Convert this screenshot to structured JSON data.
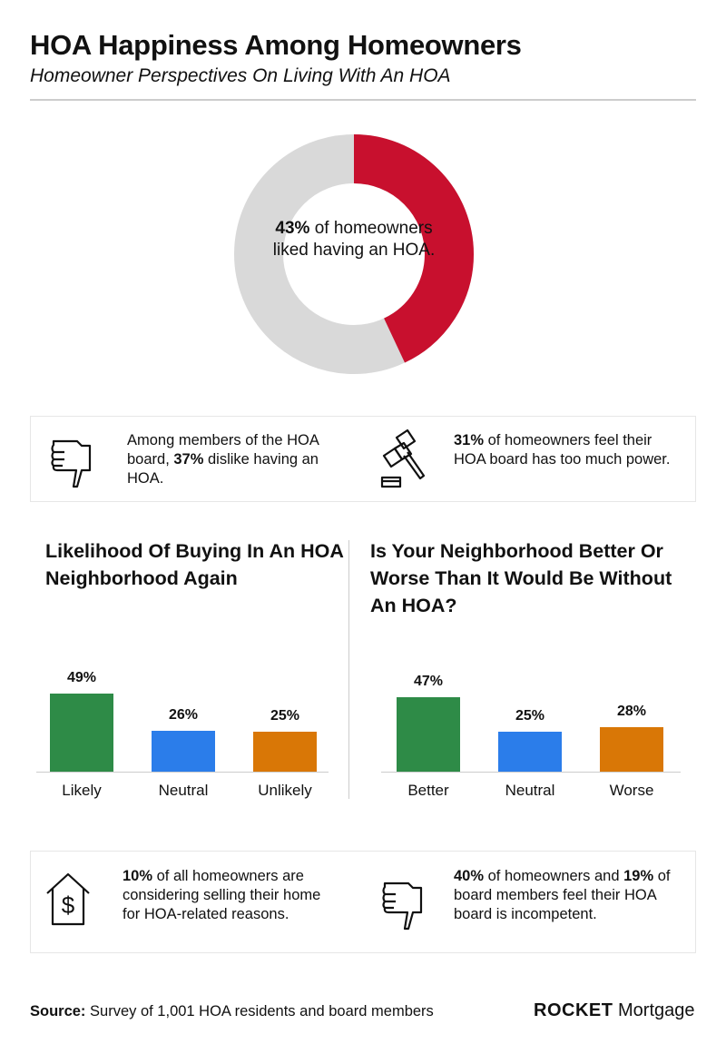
{
  "header": {
    "title": "HOA Happiness Among Homeowners",
    "subtitle": "Homeowner Perspectives On Living With An HOA"
  },
  "donut": {
    "percent_label": "43%",
    "text": " of homeowners liked having an HOA.",
    "value": 43,
    "colors": {
      "liked": "#C8102E",
      "rest": "#D9D9D9"
    }
  },
  "stats_top": [
    {
      "icon": "thumbs-down-icon",
      "pre": "Among members of the HOA board, ",
      "bold": "37%",
      "post": " dislike having an HOA."
    },
    {
      "icon": "gavel-icon",
      "pre": "",
      "bold": "31%",
      "post": " of homeowners feel their HOA board has too much power."
    }
  ],
  "stats_bottom": [
    {
      "icon": "house-dollar-icon",
      "bold": "10%",
      "post": " of all homeowners are considering selling their home for HOA-related reasons."
    },
    {
      "icon": "thumbs-down-icon",
      "bold": "40%",
      "mid": " of homeowners and ",
      "bold2": "19%",
      "post": " of board members feel their HOA board is incompetent."
    }
  ],
  "chart_data": [
    {
      "type": "bar",
      "title": "Likelihood Of Buying In An HOA Neighborhood Again",
      "categories": [
        "Likely",
        "Neutral",
        "Unlikely"
      ],
      "values": [
        49,
        26,
        25
      ],
      "value_labels": [
        "49%",
        "26%",
        "25%"
      ],
      "colors": [
        "#2E8B47",
        "#2B7DEA",
        "#D97706"
      ],
      "xlabel": "",
      "ylabel": "",
      "ylim": [
        0,
        60
      ]
    },
    {
      "type": "bar",
      "title": "Is Your Neighborhood Better Or Worse Than It Would Be Without An HOA?",
      "categories": [
        "Better",
        "Neutral",
        "Worse"
      ],
      "values": [
        47,
        25,
        28
      ],
      "value_labels": [
        "47%",
        "25%",
        "28%"
      ],
      "colors": [
        "#2E8B47",
        "#2B7DEA",
        "#D97706"
      ],
      "xlabel": "",
      "ylabel": "",
      "ylim": [
        0,
        60
      ]
    }
  ],
  "footer": {
    "source_label": "Source:",
    "source_text": " Survey of 1,001 HOA residents and board members",
    "logo_bold": "ROCKET",
    "logo_light": " Mortgage"
  }
}
